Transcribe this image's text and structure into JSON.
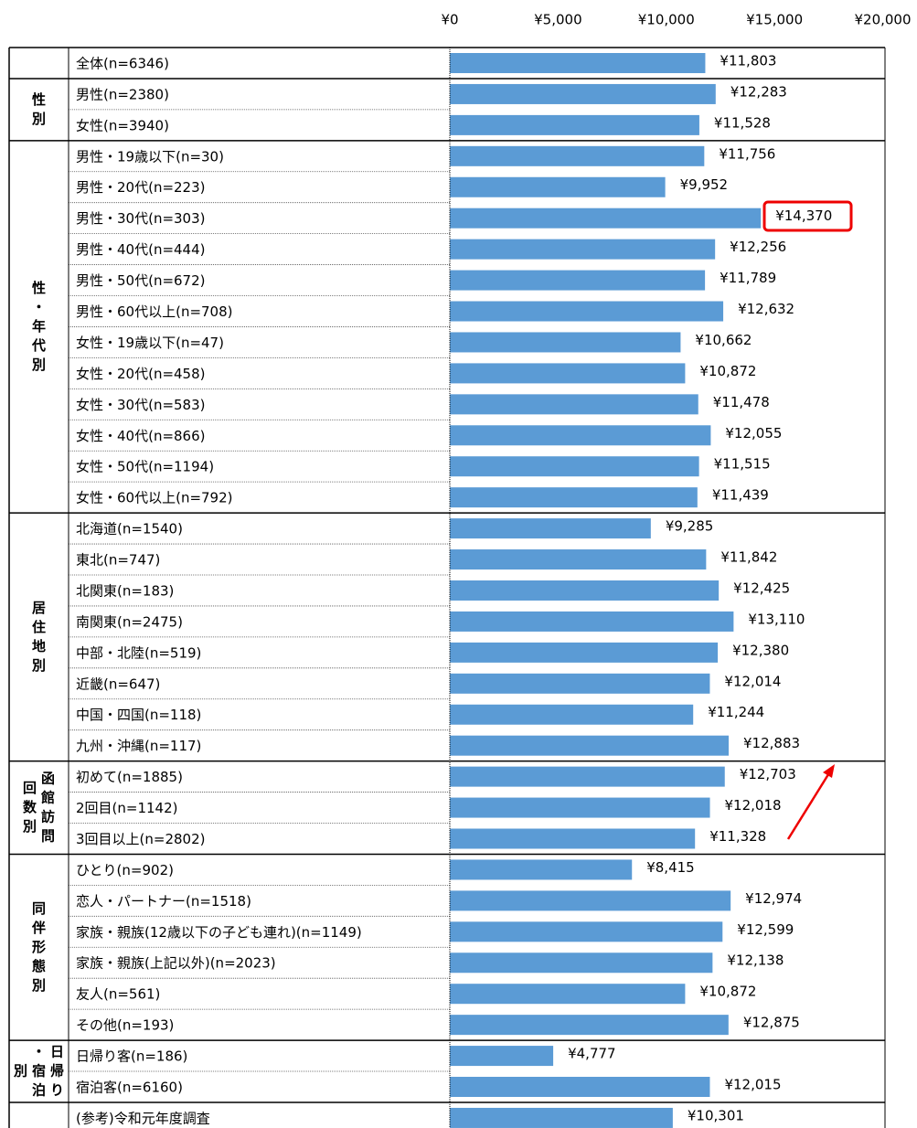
{
  "chart_data": {
    "type": "bar",
    "orientation": "horizontal",
    "color": "#5b9bd5",
    "xlim": [
      0,
      20000
    ],
    "xticks": [
      {
        "value": 0,
        "label": "¥0"
      },
      {
        "value": 5000,
        "label": "¥5,000"
      },
      {
        "value": 10000,
        "label": "¥10,000"
      },
      {
        "value": 15000,
        "label": "¥15,000"
      },
      {
        "value": 20000,
        "label": "¥20,000"
      }
    ],
    "groups": [
      {
        "categories": [
          "全体(n=6346)"
        ],
        "values": [
          11803
        ],
        "value_labels": [
          "¥11,803"
        ]
      },
      {
        "label": "性別",
        "categories": [
          "男性(n=2380)",
          "女性(n=3940)"
        ],
        "values": [
          12283,
          11528
        ],
        "value_labels": [
          "¥12,283",
          "¥11,528"
        ]
      },
      {
        "label": "性・年代別",
        "categories": [
          "男性・19歳以下(n=30)",
          "男性・20代(n=223)",
          "男性・30代(n=303)",
          "男性・40代(n=444)",
          "男性・50代(n=672)",
          "男性・60代以上(n=708)",
          "女性・19歳以下(n=47)",
          "女性・20代(n=458)",
          "女性・30代(n=583)",
          "女性・40代(n=866)",
          "女性・50代(n=1194)",
          "女性・60代以上(n=792)"
        ],
        "values": [
          11756,
          9952,
          14370,
          12256,
          11789,
          12632,
          10662,
          10872,
          11478,
          12055,
          11515,
          11439
        ],
        "value_labels": [
          "¥11,756",
          "¥9,952",
          "¥14,370",
          "¥12,256",
          "¥11,789",
          "¥12,632",
          "¥10,662",
          "¥10,872",
          "¥11,478",
          "¥12,055",
          "¥11,515",
          "¥11,439"
        ]
      },
      {
        "label": "居住地別",
        "categories": [
          "北海道(n=1540)",
          "東北(n=747)",
          "北関東(n=183)",
          "南関東(n=2475)",
          "中部・北陸(n=519)",
          "近畿(n=647)",
          "中国・四国(n=118)",
          "九州・沖縄(n=117)"
        ],
        "values": [
          9285,
          11842,
          12425,
          13110,
          12380,
          12014,
          11244,
          12883
        ],
        "value_labels": [
          "¥9,285",
          "¥11,842",
          "¥12,425",
          "¥13,110",
          "¥12,380",
          "¥12,014",
          "¥11,244",
          "¥12,883"
        ]
      },
      {
        "label": "函館訪問回数別",
        "categories": [
          "初めて(n=1885)",
          "2回目(n=1142)",
          "3回目以上(n=2802)"
        ],
        "values": [
          12703,
          12018,
          11328
        ],
        "value_labels": [
          "¥12,703",
          "¥12,018",
          "¥11,328"
        ]
      },
      {
        "label": "同伴形態別",
        "categories": [
          "ひとり(n=902)",
          "恋人・パートナー(n=1518)",
          "家族・親族(12歳以下の子ども連れ)(n=1149)",
          "家族・親族(上記以外)(n=2023)",
          "友人(n=561)",
          "その他(n=193)"
        ],
        "values": [
          8415,
          12974,
          12599,
          12138,
          10872,
          12875
        ],
        "value_labels": [
          "¥8,415",
          "¥12,974",
          "¥12,599",
          "¥12,138",
          "¥10,872",
          "¥12,875"
        ]
      },
      {
        "label": "日帰り・宿泊別",
        "categories": [
          "日帰り客(n=186)",
          "宿泊客(n=6160)"
        ],
        "values": [
          4777,
          12015
        ],
        "value_labels": [
          "¥4,777",
          "¥12,015"
        ]
      },
      {
        "categories": [
          "(参考)令和元年度調査"
        ],
        "values": [
          10301
        ],
        "value_labels": [
          "¥10,301"
        ]
      }
    ]
  }
}
